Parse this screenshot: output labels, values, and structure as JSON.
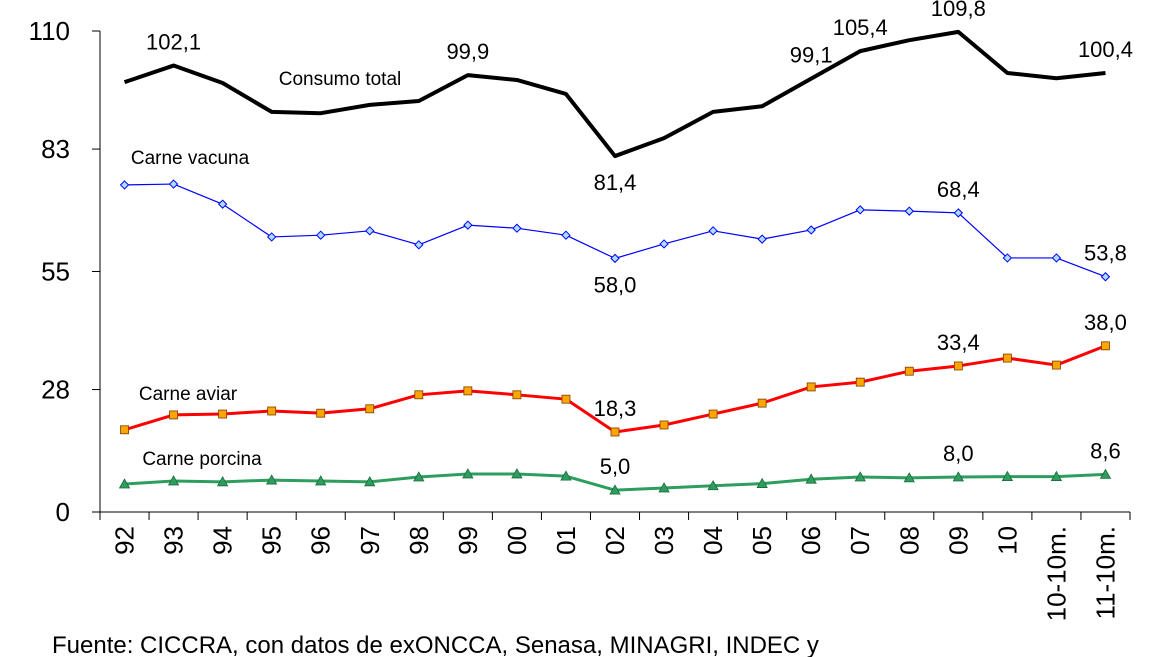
{
  "chart_data": {
    "type": "line",
    "categories": [
      "92",
      "93",
      "94",
      "95",
      "96",
      "97",
      "98",
      "99",
      "00",
      "01",
      "02",
      "03",
      "04",
      "05",
      "06",
      "07",
      "08",
      "09",
      "10",
      "10-10m.",
      "11-10m."
    ],
    "ylim": [
      0,
      110
    ],
    "yticks": [
      0,
      28,
      55,
      83,
      110
    ],
    "series": [
      {
        "name": "Consumo total",
        "color": "#000000",
        "values": [
          98.3,
          102.1,
          98.1,
          91.5,
          91.2,
          93.1,
          94.0,
          99.9,
          98.8,
          95.6,
          81.4,
          85.5,
          91.5,
          92.8,
          99.1,
          105.4,
          107.9,
          109.8,
          100.4,
          99.2,
          100.4
        ],
        "value_labels": [
          null,
          "102,1",
          null,
          null,
          null,
          null,
          null,
          "99,9",
          null,
          null,
          "81,4",
          null,
          null,
          null,
          "99,1",
          "105,4",
          null,
          "109,8",
          null,
          null,
          "100,4"
        ]
      },
      {
        "name": "Carne vacuna",
        "color": "#0000ff",
        "values": [
          74.8,
          75.0,
          70.4,
          62.9,
          63.3,
          64.3,
          61.1,
          65.6,
          64.9,
          63.3,
          58.0,
          61.3,
          64.3,
          62.4,
          64.5,
          69.1,
          68.8,
          68.4,
          58.1,
          58.1,
          53.8
        ],
        "value_labels": [
          null,
          null,
          null,
          null,
          null,
          null,
          null,
          null,
          null,
          null,
          "58,0",
          null,
          null,
          null,
          null,
          null,
          null,
          "68,4",
          null,
          null,
          "53,8"
        ]
      },
      {
        "name": "Carne aviar",
        "color": "#ff0000",
        "values": [
          18.8,
          22.2,
          22.4,
          23.1,
          22.6,
          23.6,
          26.8,
          27.7,
          26.8,
          25.8,
          18.3,
          19.9,
          22.4,
          24.9,
          28.6,
          29.7,
          32.2,
          33.4,
          35.2,
          33.6,
          38.0
        ],
        "value_labels": [
          null,
          null,
          null,
          null,
          null,
          null,
          null,
          null,
          null,
          null,
          "18,3",
          null,
          null,
          null,
          null,
          null,
          null,
          "33,4",
          null,
          null,
          "38,0"
        ]
      },
      {
        "name": "Carne porcina",
        "color": "#2e9e5e",
        "values": [
          6.4,
          7.1,
          6.9,
          7.3,
          7.1,
          6.9,
          8.0,
          8.7,
          8.7,
          8.2,
          5.0,
          5.5,
          6.0,
          6.5,
          7.5,
          8.0,
          7.8,
          8.0,
          8.1,
          8.1,
          8.6
        ],
        "value_labels": [
          null,
          null,
          null,
          null,
          null,
          null,
          null,
          null,
          null,
          null,
          "5,0",
          null,
          null,
          null,
          null,
          null,
          null,
          "8,0",
          null,
          null,
          "8,6"
        ]
      }
    ],
    "source": "Fuente: CICCRA, con datos de exONCCA, Senasa, MINAGRI, INDEC y"
  }
}
